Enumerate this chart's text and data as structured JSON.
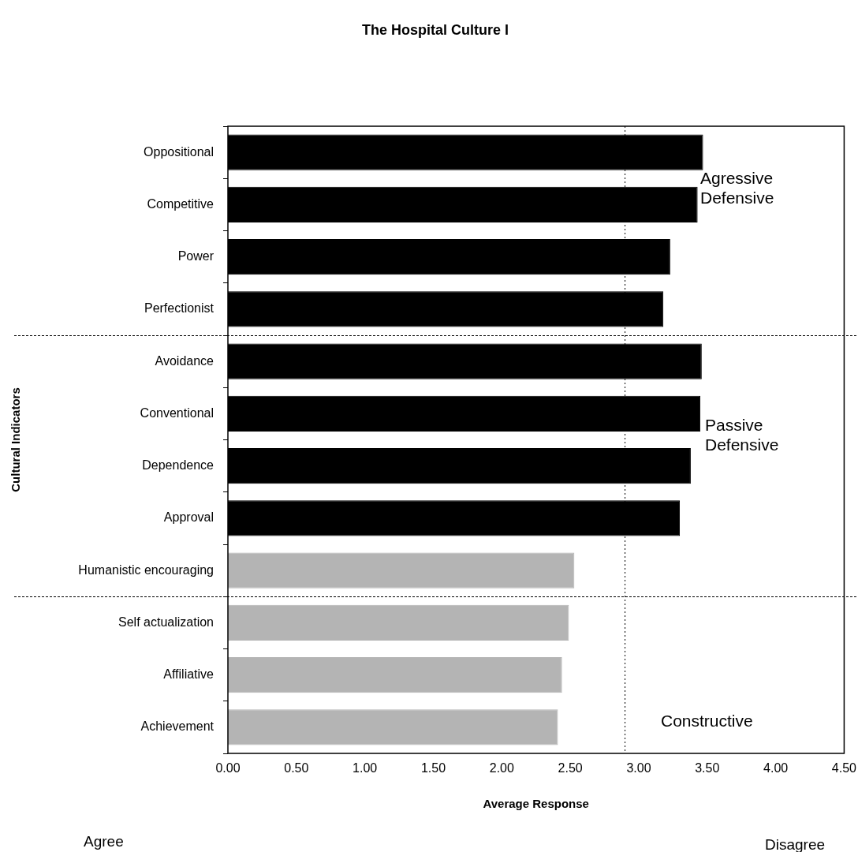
{
  "chart_data": {
    "type": "bar",
    "orientation": "horizontal",
    "title": "The Hospital Culture I",
    "xlabel": "Average Response",
    "ylabel": "Cultural Indicators",
    "categories": [
      "Oppositional",
      "Competitive",
      "Power",
      "Perfectionist",
      "Avoidance",
      "Conventional",
      "Dependence",
      "Approval",
      "Humanistic encouraging",
      "Self actualization",
      "Affiliative",
      "Achievement"
    ],
    "values": [
      3.47,
      3.43,
      3.23,
      3.18,
      3.46,
      3.45,
      3.38,
      3.3,
      2.53,
      2.49,
      2.44,
      2.41
    ],
    "colors": [
      "#000000",
      "#000000",
      "#000000",
      "#000000",
      "#000000",
      "#000000",
      "#000000",
      "#000000",
      "#b4b4b4",
      "#b4b4b4",
      "#b4b4b4",
      "#b4b4b4"
    ],
    "xlim": [
      0,
      4.5
    ],
    "xticks": [
      {
        "value": 0,
        "label": "0.00"
      },
      {
        "value": 0.5,
        "label": "0.50"
      },
      {
        "value": 1,
        "label": "1.00"
      },
      {
        "value": 1.5,
        "label": "1.50"
      },
      {
        "value": 2,
        "label": "2.00"
      },
      {
        "value": 2.5,
        "label": "2.50"
      },
      {
        "value": 3,
        "label": "3.00"
      },
      {
        "value": 3.5,
        "label": "3.50"
      },
      {
        "value": 4,
        "label": "4.00"
      },
      {
        "value": 4.5,
        "label": "4.50"
      }
    ],
    "ref_lines": [
      {
        "axis": "x",
        "value": 2.9,
        "line_style": "dotted",
        "color": "#000000"
      }
    ],
    "annotations": [
      "Agressive Defensive",
      "Passive Defensive",
      "Constructive",
      "Agree",
      "Disagree"
    ],
    "grid": false,
    "legend": false
  }
}
